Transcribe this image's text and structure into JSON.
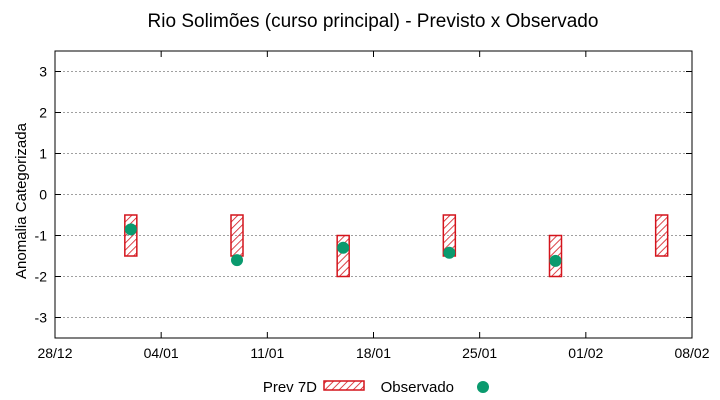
{
  "chart_data": {
    "type": "scatter",
    "title": "Rio Solimões (curso principal) - Previsto x Observado",
    "xlabel": "",
    "ylabel": "Anomalia Categorizada",
    "xlim": [
      0,
      42
    ],
    "ylim": [
      -3.5,
      3.5
    ],
    "x_tick_labels": [
      "28/12",
      "04/01",
      "11/01",
      "18/01",
      "25/01",
      "01/02",
      "08/02"
    ],
    "x_tick_values": [
      0,
      7,
      14,
      21,
      28,
      35,
      42
    ],
    "y_ticks": [
      -3,
      -2,
      -1,
      0,
      1,
      2,
      3
    ],
    "grid": true,
    "legend_position": "bottom-center",
    "series": [
      {
        "name": "Prev 7D",
        "kind": "range-box",
        "color": "#d4141c",
        "points": [
          {
            "x": 5,
            "low": -1.5,
            "high": -0.5
          },
          {
            "x": 12,
            "low": -1.5,
            "high": -0.5
          },
          {
            "x": 19,
            "low": -2.0,
            "high": -1.0
          },
          {
            "x": 26,
            "low": -1.5,
            "high": -0.5
          },
          {
            "x": 33,
            "low": -2.0,
            "high": -1.0
          },
          {
            "x": 40,
            "low": -1.5,
            "high": -0.5
          }
        ]
      },
      {
        "name": "Observado",
        "kind": "point",
        "color": "#0a9a6e",
        "points": [
          {
            "x": 5,
            "y": -0.85
          },
          {
            "x": 12,
            "y": -1.6
          },
          {
            "x": 19,
            "y": -1.3
          },
          {
            "x": 26,
            "y": -1.42
          },
          {
            "x": 33,
            "y": -1.62
          }
        ]
      }
    ]
  }
}
